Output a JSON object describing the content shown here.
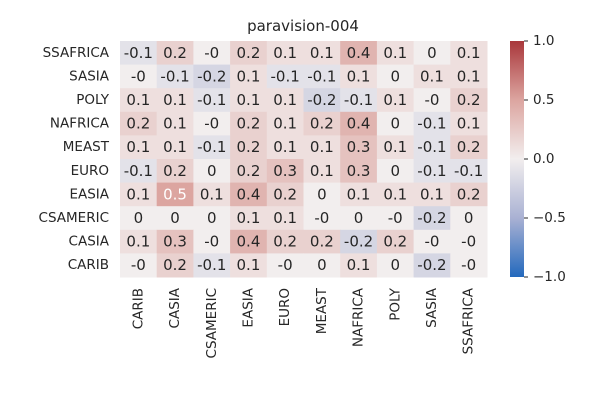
{
  "chart_data": {
    "type": "heatmap",
    "title": "paravision-004",
    "x_categories": [
      "CARIB",
      "CASIA",
      "CSAMERIC",
      "EASIA",
      "EURO",
      "MEAST",
      "NAFRICA",
      "POLY",
      "SASIA",
      "SSAFRICA"
    ],
    "y_categories": [
      "SSAFRICA",
      "SASIA",
      "POLY",
      "NAFRICA",
      "MEAST",
      "EURO",
      "EASIA",
      "CSAMERIC",
      "CASIA",
      "CARIB"
    ],
    "values": [
      [
        -0.1,
        0.2,
        0,
        0.2,
        0.1,
        0.1,
        0.4,
        0.1,
        0,
        0.1
      ],
      [
        0,
        -0.1,
        -0.2,
        0.1,
        -0.1,
        -0.1,
        0.1,
        0,
        0.1,
        0.1
      ],
      [
        0.1,
        0.1,
        -0.1,
        0.1,
        0.1,
        -0.2,
        -0.1,
        0.1,
        0,
        0.2
      ],
      [
        0.2,
        0.1,
        0,
        0.2,
        0.1,
        0.2,
        0.4,
        0,
        -0.1,
        0.1
      ],
      [
        0.1,
        0.1,
        -0.1,
        0.2,
        0.1,
        0.1,
        0.3,
        0.1,
        -0.1,
        0.2
      ],
      [
        -0.1,
        0.2,
        0,
        0.2,
        0.3,
        0.1,
        0.3,
        0,
        -0.1,
        -0.1
      ],
      [
        0.1,
        0.5,
        0.1,
        0.4,
        0.2,
        0,
        0.1,
        0.1,
        0.1,
        0.2
      ],
      [
        0,
        0,
        0,
        0.1,
        0.1,
        0,
        0,
        0,
        -0.2,
        0
      ],
      [
        0.1,
        0.3,
        0,
        0.4,
        0.2,
        0.2,
        -0.2,
        0.2,
        0,
        0
      ],
      [
        0,
        0.2,
        -0.1,
        0.1,
        0,
        0,
        0.1,
        0,
        -0.2,
        0
      ]
    ],
    "labels": [
      [
        "-0.1",
        "0.2",
        "-0",
        "0.2",
        "0.1",
        "0.1",
        "0.4",
        "0.1",
        "0",
        "0.1"
      ],
      [
        "-0",
        "-0.1",
        "-0.2",
        "0.1",
        "-0.1",
        "-0.1",
        "0.1",
        "0",
        "0.1",
        "0.1"
      ],
      [
        "0.1",
        "0.1",
        "-0.1",
        "0.1",
        "0.1",
        "-0.2",
        "-0.1",
        "0.1",
        "-0",
        "0.2"
      ],
      [
        "0.2",
        "0.1",
        "-0",
        "0.2",
        "0.1",
        "0.2",
        "0.4",
        "0",
        "-0.1",
        "0.1"
      ],
      [
        "0.1",
        "0.1",
        "-0.1",
        "0.2",
        "0.1",
        "0.1",
        "0.3",
        "0.1",
        "-0.1",
        "0.2"
      ],
      [
        "-0.1",
        "0.2",
        "0",
        "0.2",
        "0.3",
        "0.1",
        "0.3",
        "0",
        "-0.1",
        "-0.1"
      ],
      [
        "0.1",
        "0.5",
        "0.1",
        "0.4",
        "0.2",
        "0",
        "0.1",
        "0.1",
        "0.1",
        "0.2"
      ],
      [
        "0",
        "0",
        "0",
        "0.1",
        "0.1",
        "-0",
        "0",
        "-0",
        "-0.2",
        "0"
      ],
      [
        "0.1",
        "0.3",
        "-0",
        "0.4",
        "0.2",
        "0.2",
        "-0.2",
        "0.2",
        "-0",
        "-0"
      ],
      [
        "-0",
        "0.2",
        "-0.1",
        "0.1",
        "-0",
        "0",
        "0.1",
        "0",
        "-0.2",
        "-0"
      ]
    ],
    "vmin": -1.0,
    "vmax": 1.0,
    "colormap": "vlag",
    "colormap_stops": [
      "#2369bd",
      "#a9b1d3",
      "#f2eeee",
      "#dca5a0",
      "#a9373b"
    ],
    "colorbar_ticks": [
      1.0,
      0.5,
      0.0,
      -0.5,
      -1.0
    ],
    "colorbar_tick_labels": [
      "1.0",
      "0.5",
      "0.0",
      "−0.5",
      "−1.0"
    ],
    "text_color_dark": "#262626",
    "text_color_light": "#ffffff"
  }
}
